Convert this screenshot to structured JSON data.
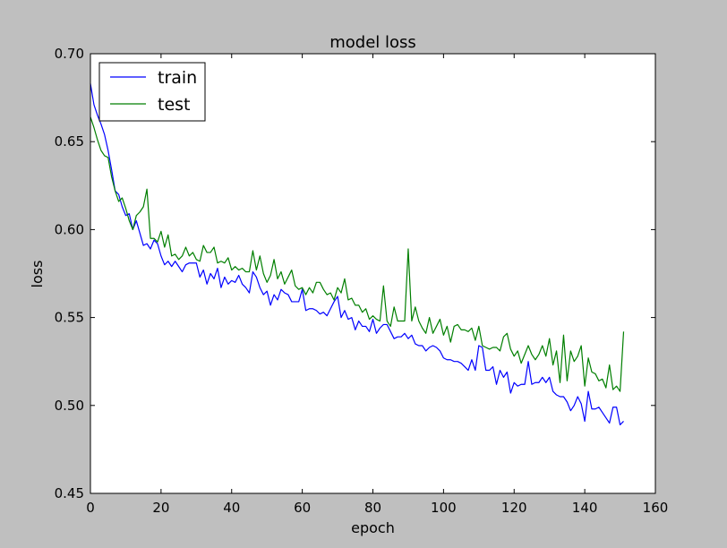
{
  "chart_data": {
    "type": "line",
    "title": "model loss",
    "xlabel": "epoch",
    "ylabel": "loss",
    "xlim": [
      0,
      160
    ],
    "ylim": [
      0.45,
      0.7
    ],
    "xticks": [
      "0",
      "20",
      "40",
      "60",
      "80",
      "100",
      "120",
      "140",
      "160"
    ],
    "yticks": [
      "0.45",
      "0.50",
      "0.55",
      "0.60",
      "0.65",
      "0.70"
    ],
    "grid": false,
    "legend_position": "top-left",
    "series": [
      {
        "name": "train",
        "color": "#0000ff",
        "points": [
          [
            0,
            0.683
          ],
          [
            1,
            0.671
          ],
          [
            2,
            0.665
          ],
          [
            3,
            0.66
          ],
          [
            4,
            0.654
          ],
          [
            5,
            0.645
          ],
          [
            6,
            0.634
          ],
          [
            7,
            0.622
          ],
          [
            8,
            0.62
          ],
          [
            9,
            0.613
          ],
          [
            10,
            0.608
          ],
          [
            11,
            0.609
          ],
          [
            12,
            0.6
          ],
          [
            13,
            0.605
          ],
          [
            14,
            0.598
          ],
          [
            15,
            0.591
          ],
          [
            16,
            0.592
          ],
          [
            17,
            0.589
          ],
          [
            18,
            0.594
          ],
          [
            19,
            0.592
          ],
          [
            20,
            0.585
          ],
          [
            21,
            0.58
          ],
          [
            22,
            0.582
          ],
          [
            23,
            0.579
          ],
          [
            24,
            0.582
          ],
          [
            25,
            0.579
          ],
          [
            26,
            0.576
          ],
          [
            27,
            0.58
          ],
          [
            28,
            0.581
          ],
          [
            29,
            0.581
          ],
          [
            30,
            0.581
          ],
          [
            31,
            0.573
          ],
          [
            32,
            0.577
          ],
          [
            33,
            0.569
          ],
          [
            34,
            0.575
          ],
          [
            35,
            0.572
          ],
          [
            36,
            0.578
          ],
          [
            37,
            0.567
          ],
          [
            38,
            0.573
          ],
          [
            39,
            0.569
          ],
          [
            40,
            0.571
          ],
          [
            41,
            0.57
          ],
          [
            42,
            0.574
          ],
          [
            43,
            0.569
          ],
          [
            44,
            0.567
          ],
          [
            45,
            0.564
          ],
          [
            46,
            0.576
          ],
          [
            47,
            0.573
          ],
          [
            48,
            0.567
          ],
          [
            49,
            0.563
          ],
          [
            50,
            0.565
          ],
          [
            51,
            0.557
          ],
          [
            52,
            0.563
          ],
          [
            53,
            0.56
          ],
          [
            54,
            0.566
          ],
          [
            55,
            0.564
          ],
          [
            56,
            0.563
          ],
          [
            57,
            0.559
          ],
          [
            58,
            0.559
          ],
          [
            59,
            0.559
          ],
          [
            60,
            0.566
          ],
          [
            61,
            0.554
          ],
          [
            62,
            0.555
          ],
          [
            63,
            0.555
          ],
          [
            64,
            0.554
          ],
          [
            65,
            0.552
          ],
          [
            66,
            0.553
          ],
          [
            67,
            0.551
          ],
          [
            68,
            0.555
          ],
          [
            69,
            0.559
          ],
          [
            70,
            0.562
          ],
          [
            71,
            0.55
          ],
          [
            72,
            0.554
          ],
          [
            73,
            0.549
          ],
          [
            74,
            0.55
          ],
          [
            75,
            0.543
          ],
          [
            76,
            0.548
          ],
          [
            77,
            0.545
          ],
          [
            78,
            0.545
          ],
          [
            79,
            0.542
          ],
          [
            80,
            0.549
          ],
          [
            81,
            0.541
          ],
          [
            82,
            0.544
          ],
          [
            83,
            0.546
          ],
          [
            84,
            0.546
          ],
          [
            85,
            0.542
          ],
          [
            86,
            0.538
          ],
          [
            87,
            0.539
          ],
          [
            88,
            0.539
          ],
          [
            89,
            0.541
          ],
          [
            90,
            0.538
          ],
          [
            91,
            0.54
          ],
          [
            92,
            0.535
          ],
          [
            93,
            0.534
          ],
          [
            94,
            0.534
          ],
          [
            95,
            0.531
          ],
          [
            96,
            0.533
          ],
          [
            97,
            0.534
          ],
          [
            98,
            0.533
          ],
          [
            99,
            0.531
          ],
          [
            100,
            0.527
          ],
          [
            101,
            0.526
          ],
          [
            102,
            0.526
          ],
          [
            103,
            0.525
          ],
          [
            104,
            0.525
          ],
          [
            105,
            0.524
          ],
          [
            106,
            0.522
          ],
          [
            107,
            0.52
          ],
          [
            108,
            0.526
          ],
          [
            109,
            0.52
          ],
          [
            110,
            0.534
          ],
          [
            111,
            0.533
          ],
          [
            112,
            0.52
          ],
          [
            113,
            0.52
          ],
          [
            114,
            0.522
          ],
          [
            115,
            0.512
          ],
          [
            116,
            0.52
          ],
          [
            117,
            0.516
          ],
          [
            118,
            0.519
          ],
          [
            119,
            0.507
          ],
          [
            120,
            0.513
          ],
          [
            121,
            0.511
          ],
          [
            122,
            0.512
          ],
          [
            123,
            0.512
          ],
          [
            124,
            0.525
          ],
          [
            125,
            0.512
          ],
          [
            126,
            0.513
          ],
          [
            127,
            0.513
          ],
          [
            128,
            0.516
          ],
          [
            129,
            0.513
          ],
          [
            130,
            0.516
          ],
          [
            131,
            0.508
          ],
          [
            132,
            0.506
          ],
          [
            133,
            0.505
          ],
          [
            134,
            0.505
          ],
          [
            135,
            0.502
          ],
          [
            136,
            0.497
          ],
          [
            137,
            0.5
          ],
          [
            138,
            0.505
          ],
          [
            139,
            0.501
          ],
          [
            140,
            0.491
          ],
          [
            141,
            0.508
          ],
          [
            142,
            0.498
          ],
          [
            143,
            0.498
          ],
          [
            144,
            0.499
          ],
          [
            145,
            0.496
          ],
          [
            146,
            0.493
          ],
          [
            147,
            0.49
          ],
          [
            148,
            0.499
          ],
          [
            149,
            0.499
          ],
          [
            150,
            0.489
          ],
          [
            151,
            0.491
          ]
        ]
      },
      {
        "name": "test",
        "color": "#007f00",
        "points": [
          [
            0,
            0.664
          ],
          [
            1,
            0.658
          ],
          [
            2,
            0.651
          ],
          [
            3,
            0.645
          ],
          [
            4,
            0.642
          ],
          [
            5,
            0.641
          ],
          [
            6,
            0.63
          ],
          [
            7,
            0.622
          ],
          [
            8,
            0.616
          ],
          [
            9,
            0.618
          ],
          [
            10,
            0.612
          ],
          [
            11,
            0.605
          ],
          [
            12,
            0.6
          ],
          [
            13,
            0.608
          ],
          [
            14,
            0.61
          ],
          [
            15,
            0.613
          ],
          [
            16,
            0.623
          ],
          [
            17,
            0.595
          ],
          [
            18,
            0.595
          ],
          [
            19,
            0.593
          ],
          [
            20,
            0.599
          ],
          [
            21,
            0.59
          ],
          [
            22,
            0.597
          ],
          [
            23,
            0.585
          ],
          [
            24,
            0.586
          ],
          [
            25,
            0.583
          ],
          [
            26,
            0.585
          ],
          [
            27,
            0.59
          ],
          [
            28,
            0.585
          ],
          [
            29,
            0.587
          ],
          [
            30,
            0.583
          ],
          [
            31,
            0.582
          ],
          [
            32,
            0.591
          ],
          [
            33,
            0.587
          ],
          [
            34,
            0.587
          ],
          [
            35,
            0.59
          ],
          [
            36,
            0.581
          ],
          [
            37,
            0.582
          ],
          [
            38,
            0.581
          ],
          [
            39,
            0.584
          ],
          [
            40,
            0.577
          ],
          [
            41,
            0.579
          ],
          [
            42,
            0.577
          ],
          [
            43,
            0.578
          ],
          [
            44,
            0.576
          ],
          [
            45,
            0.576
          ],
          [
            46,
            0.588
          ],
          [
            47,
            0.577
          ],
          [
            48,
            0.585
          ],
          [
            49,
            0.575
          ],
          [
            50,
            0.57
          ],
          [
            51,
            0.574
          ],
          [
            52,
            0.583
          ],
          [
            53,
            0.572
          ],
          [
            54,
            0.576
          ],
          [
            55,
            0.569
          ],
          [
            56,
            0.573
          ],
          [
            57,
            0.577
          ],
          [
            58,
            0.568
          ],
          [
            59,
            0.566
          ],
          [
            60,
            0.567
          ],
          [
            61,
            0.563
          ],
          [
            62,
            0.567
          ],
          [
            63,
            0.564
          ],
          [
            64,
            0.57
          ],
          [
            65,
            0.57
          ],
          [
            66,
            0.566
          ],
          [
            67,
            0.563
          ],
          [
            68,
            0.564
          ],
          [
            69,
            0.56
          ],
          [
            70,
            0.567
          ],
          [
            71,
            0.564
          ],
          [
            72,
            0.572
          ],
          [
            73,
            0.56
          ],
          [
            74,
            0.561
          ],
          [
            75,
            0.557
          ],
          [
            76,
            0.557
          ],
          [
            77,
            0.553
          ],
          [
            78,
            0.555
          ],
          [
            79,
            0.549
          ],
          [
            80,
            0.551
          ],
          [
            81,
            0.549
          ],
          [
            82,
            0.548
          ],
          [
            83,
            0.568
          ],
          [
            84,
            0.548
          ],
          [
            85,
            0.545
          ],
          [
            86,
            0.556
          ],
          [
            87,
            0.548
          ],
          [
            88,
            0.548
          ],
          [
            89,
            0.548
          ],
          [
            90,
            0.589
          ],
          [
            91,
            0.548
          ],
          [
            92,
            0.556
          ],
          [
            93,
            0.548
          ],
          [
            94,
            0.544
          ],
          [
            95,
            0.541
          ],
          [
            96,
            0.55
          ],
          [
            97,
            0.541
          ],
          [
            98,
            0.545
          ],
          [
            99,
            0.549
          ],
          [
            100,
            0.54
          ],
          [
            101,
            0.545
          ],
          [
            102,
            0.536
          ],
          [
            103,
            0.545
          ],
          [
            104,
            0.546
          ],
          [
            105,
            0.543
          ],
          [
            106,
            0.543
          ],
          [
            107,
            0.542
          ],
          [
            108,
            0.544
          ],
          [
            109,
            0.537
          ],
          [
            110,
            0.545
          ],
          [
            111,
            0.534
          ],
          [
            112,
            0.533
          ],
          [
            113,
            0.532
          ],
          [
            114,
            0.533
          ],
          [
            115,
            0.533
          ],
          [
            116,
            0.531
          ],
          [
            117,
            0.539
          ],
          [
            118,
            0.541
          ],
          [
            119,
            0.532
          ],
          [
            120,
            0.528
          ],
          [
            121,
            0.531
          ],
          [
            122,
            0.524
          ],
          [
            123,
            0.529
          ],
          [
            124,
            0.534
          ],
          [
            125,
            0.529
          ],
          [
            126,
            0.526
          ],
          [
            127,
            0.529
          ],
          [
            128,
            0.534
          ],
          [
            129,
            0.528
          ],
          [
            130,
            0.538
          ],
          [
            131,
            0.523
          ],
          [
            132,
            0.531
          ],
          [
            133,
            0.513
          ],
          [
            134,
            0.54
          ],
          [
            135,
            0.514
          ],
          [
            136,
            0.531
          ],
          [
            137,
            0.525
          ],
          [
            138,
            0.528
          ],
          [
            139,
            0.534
          ],
          [
            140,
            0.511
          ],
          [
            141,
            0.527
          ],
          [
            142,
            0.519
          ],
          [
            143,
            0.518
          ],
          [
            144,
            0.514
          ],
          [
            145,
            0.515
          ],
          [
            146,
            0.51
          ],
          [
            147,
            0.523
          ],
          [
            148,
            0.509
          ],
          [
            149,
            0.511
          ],
          [
            150,
            0.508
          ],
          [
            151,
            0.542
          ]
        ]
      }
    ]
  }
}
